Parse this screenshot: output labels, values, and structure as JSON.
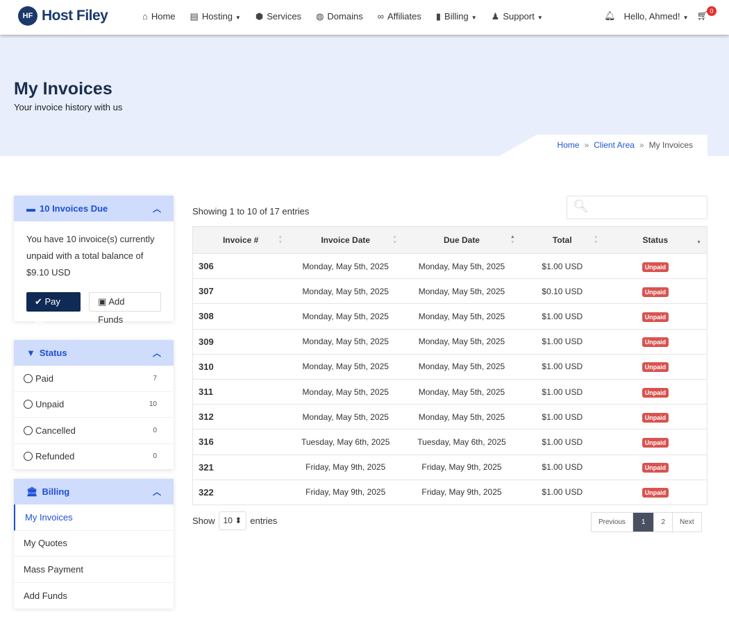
{
  "nav": {
    "brand": "Host Filey",
    "logo_mark": "HF",
    "items": [
      {
        "label": "Home",
        "icon": "⌂",
        "caret": false
      },
      {
        "label": "Hosting",
        "icon": "▤",
        "caret": true
      },
      {
        "label": "Services",
        "icon": "⬢",
        "caret": false
      },
      {
        "label": "Domains",
        "icon": "◍",
        "caret": false
      },
      {
        "label": "Affiliates",
        "icon": "∞",
        "caret": false
      },
      {
        "label": "Billing",
        "icon": "▮",
        "caret": true
      },
      {
        "label": "Support",
        "icon": "♟",
        "caret": true
      }
    ],
    "greeting": "Hello, Ahmed!",
    "cart_count": "0"
  },
  "hero": {
    "title": "My Invoices",
    "subtitle": "Your invoice history with us"
  },
  "breadcrumb": [
    "Home",
    "Client Area",
    "My Invoices"
  ],
  "due_panel": {
    "title": "10 Invoices Due",
    "text": "You have 10 invoice(s) currently unpaid with a total balance of $9.10 USD",
    "pay_all": "Pay All",
    "add_funds": "Add Funds"
  },
  "status_panel": {
    "title": "Status",
    "items": [
      {
        "label": "Paid",
        "count": "7"
      },
      {
        "label": "Unpaid",
        "count": "10"
      },
      {
        "label": "Cancelled",
        "count": "0"
      },
      {
        "label": "Refunded",
        "count": "0"
      }
    ]
  },
  "billing_panel": {
    "title": "Billing",
    "items": [
      "My Invoices",
      "My Quotes",
      "Mass Payment",
      "Add Funds"
    ],
    "active": "My Invoices"
  },
  "table": {
    "showing": "Showing 1 to 10 of 17 entries",
    "columns": [
      "Invoice #",
      "Invoice Date",
      "Due Date",
      "Total",
      "Status"
    ],
    "rows": [
      [
        "306",
        "Monday, May 5th, 2025",
        "Monday, May 5th, 2025",
        "$1.00 USD",
        "Unpaid"
      ],
      [
        "307",
        "Monday, May 5th, 2025",
        "Monday, May 5th, 2025",
        "$0.10 USD",
        "Unpaid"
      ],
      [
        "308",
        "Monday, May 5th, 2025",
        "Monday, May 5th, 2025",
        "$1.00 USD",
        "Unpaid"
      ],
      [
        "309",
        "Monday, May 5th, 2025",
        "Monday, May 5th, 2025",
        "$1.00 USD",
        "Unpaid"
      ],
      [
        "310",
        "Monday, May 5th, 2025",
        "Monday, May 5th, 2025",
        "$1.00 USD",
        "Unpaid"
      ],
      [
        "311",
        "Monday, May 5th, 2025",
        "Monday, May 5th, 2025",
        "$1.00 USD",
        "Unpaid"
      ],
      [
        "312",
        "Monday, May 5th, 2025",
        "Monday, May 5th, 2025",
        "$1.00 USD",
        "Unpaid"
      ],
      [
        "316",
        "Tuesday, May 6th, 2025",
        "Tuesday, May 6th, 2025",
        "$1.00 USD",
        "Unpaid"
      ],
      [
        "321",
        "Friday, May 9th, 2025",
        "Friday, May 9th, 2025",
        "$1.00 USD",
        "Unpaid"
      ],
      [
        "322",
        "Friday, May 9th, 2025",
        "Friday, May 9th, 2025",
        "$1.00 USD",
        "Unpaid"
      ]
    ],
    "sorted_column": "Due Date"
  },
  "footer": {
    "show": "Show",
    "entries": "entries",
    "page_size": "10",
    "pager": [
      "Previous",
      "1",
      "2",
      "Next"
    ],
    "current_page": "1"
  },
  "colors": {
    "accent": "#1f4fd6",
    "brand": "#1b3a6b",
    "unpaid": "#d9534f",
    "hero_bg": "#e8eefb"
  }
}
